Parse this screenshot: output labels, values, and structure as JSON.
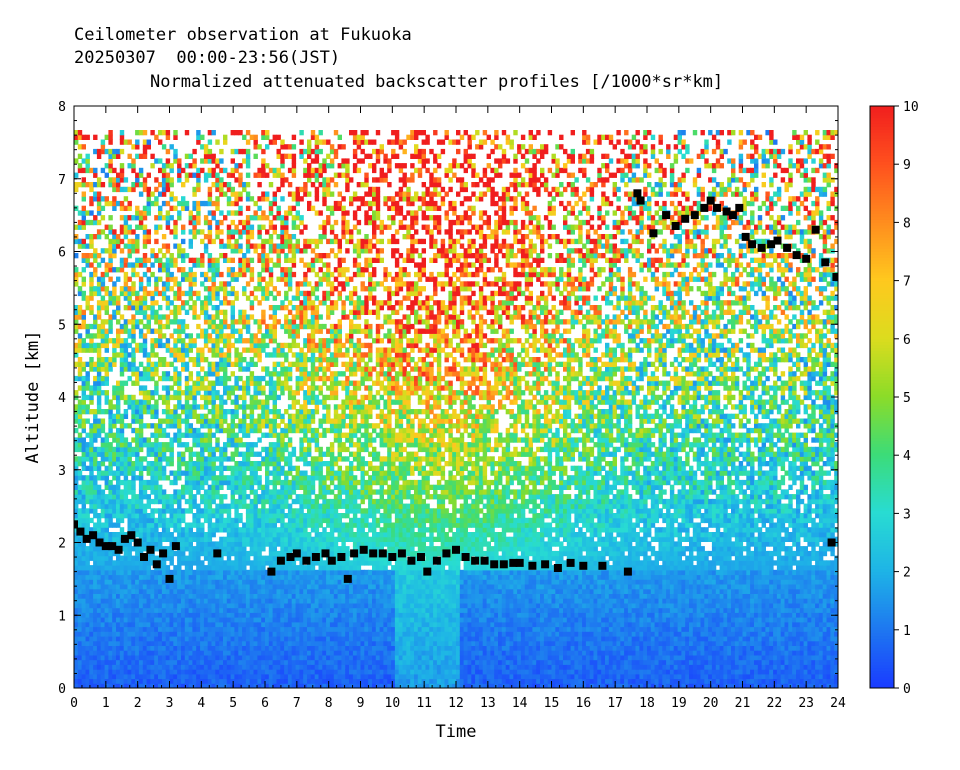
{
  "header": {
    "line1": "Ceilometer observation at Fukuoka",
    "line2": "20250307  00:00-23:56(JST)"
  },
  "chart_data": {
    "type": "heatmap",
    "title": "Normalized attenuated backscatter profiles [/1000*sr*km]",
    "xlabel": "Time",
    "ylabel": "Altitude [km]",
    "xlim": [
      0,
      24
    ],
    "ylim": [
      0,
      8
    ],
    "x_ticks": [
      0,
      1,
      2,
      3,
      4,
      5,
      6,
      7,
      8,
      9,
      10,
      11,
      12,
      13,
      14,
      15,
      16,
      17,
      18,
      19,
      20,
      21,
      22,
      23,
      24
    ],
    "y_ticks": [
      0,
      1,
      2,
      3,
      4,
      5,
      6,
      7,
      8
    ],
    "colorbar": {
      "range": [
        0,
        10
      ],
      "ticks": [
        0,
        1,
        2,
        3,
        4,
        5,
        6,
        7,
        8,
        9,
        10
      ],
      "colors": [
        "#1a3cff",
        "#1e78f0",
        "#1eb4e6",
        "#28dcd2",
        "#3cdc78",
        "#8cdc28",
        "#dcdc1e",
        "#ffc81e",
        "#ff8c1e",
        "#ff501e",
        "#f01e1e"
      ]
    },
    "cloud_base_series": [
      {
        "name": "",
        "color": "#000000",
        "points": [
          [
            0.0,
            2.25
          ],
          [
            0.2,
            2.15
          ],
          [
            0.4,
            2.05
          ],
          [
            0.6,
            2.1
          ],
          [
            0.8,
            2.0
          ],
          [
            1.0,
            1.95
          ],
          [
            1.2,
            1.95
          ],
          [
            1.4,
            1.9
          ],
          [
            1.6,
            2.05
          ],
          [
            1.8,
            2.1
          ],
          [
            2.0,
            2.0
          ],
          [
            2.2,
            1.8
          ],
          [
            2.4,
            1.9
          ],
          [
            2.6,
            1.7
          ],
          [
            2.8,
            1.85
          ],
          [
            3.0,
            1.5
          ],
          [
            3.2,
            1.95
          ],
          [
            4.5,
            1.85
          ],
          [
            6.2,
            1.6
          ],
          [
            6.5,
            1.75
          ],
          [
            6.8,
            1.8
          ],
          [
            7.0,
            1.85
          ],
          [
            7.3,
            1.75
          ],
          [
            7.6,
            1.8
          ],
          [
            7.9,
            1.85
          ],
          [
            8.1,
            1.75
          ],
          [
            8.4,
            1.8
          ],
          [
            8.6,
            1.5
          ],
          [
            8.8,
            1.85
          ],
          [
            9.1,
            1.9
          ],
          [
            9.4,
            1.85
          ],
          [
            9.7,
            1.85
          ],
          [
            10.0,
            1.8
          ],
          [
            10.3,
            1.85
          ],
          [
            10.6,
            1.75
          ],
          [
            10.9,
            1.8
          ],
          [
            11.1,
            1.6
          ],
          [
            11.4,
            1.75
          ],
          [
            11.7,
            1.85
          ],
          [
            12.0,
            1.9
          ],
          [
            12.3,
            1.8
          ],
          [
            12.6,
            1.75
          ],
          [
            12.9,
            1.75
          ],
          [
            13.2,
            1.7
          ],
          [
            13.5,
            1.7
          ],
          [
            13.8,
            1.72
          ],
          [
            14.0,
            1.72
          ],
          [
            14.4,
            1.68
          ],
          [
            14.8,
            1.7
          ],
          [
            15.2,
            1.65
          ],
          [
            15.6,
            1.72
          ],
          [
            16.0,
            1.68
          ],
          [
            16.6,
            1.68
          ],
          [
            17.4,
            1.6
          ],
          [
            17.7,
            6.8
          ],
          [
            17.8,
            6.7
          ],
          [
            18.2,
            6.25
          ],
          [
            18.6,
            6.5
          ],
          [
            18.9,
            6.35
          ],
          [
            19.2,
            6.45
          ],
          [
            19.5,
            6.5
          ],
          [
            19.8,
            6.6
          ],
          [
            20.0,
            6.7
          ],
          [
            20.2,
            6.6
          ],
          [
            20.5,
            6.55
          ],
          [
            20.7,
            6.5
          ],
          [
            20.9,
            6.6
          ],
          [
            21.1,
            6.2
          ],
          [
            21.3,
            6.1
          ],
          [
            21.6,
            6.05
          ],
          [
            21.9,
            6.1
          ],
          [
            22.1,
            6.15
          ],
          [
            22.4,
            6.05
          ],
          [
            22.7,
            5.95
          ],
          [
            23.0,
            5.9
          ],
          [
            23.3,
            6.3
          ],
          [
            23.6,
            5.85
          ],
          [
            23.8,
            2.0
          ],
          [
            23.95,
            5.65
          ]
        ]
      }
    ],
    "max_range_km": 7.65
  }
}
